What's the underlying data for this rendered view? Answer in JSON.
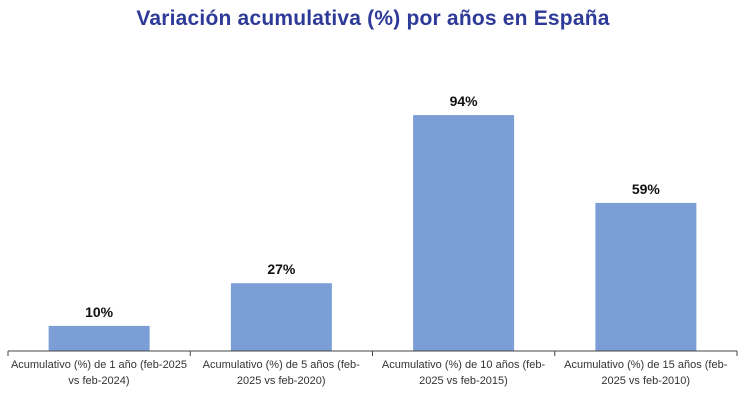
{
  "chart_data": {
    "type": "bar",
    "title": "Variación acumulativa (%) por años en España",
    "categories": [
      "Acumulativo (%) de 1 año (feb-2025\nvs feb-2024)",
      "Acumulativo (%) de 5 años  (feb-\n2025 vs feb-2020)",
      "Acumulativo (%) de 10 años (feb-\n2025 vs feb-2015)",
      "Acumulativo (%) de 15 años (feb-\n2025 vs feb-2010)"
    ],
    "values": [
      10,
      27,
      94,
      59
    ],
    "data_labels": [
      "10%",
      "27%",
      "94%",
      "59%"
    ],
    "xlabel": "",
    "ylabel": "",
    "ylim": [
      0,
      100
    ],
    "grid": false,
    "bar_color": "#7B9ED6",
    "title_color": "#2E3A97"
  }
}
